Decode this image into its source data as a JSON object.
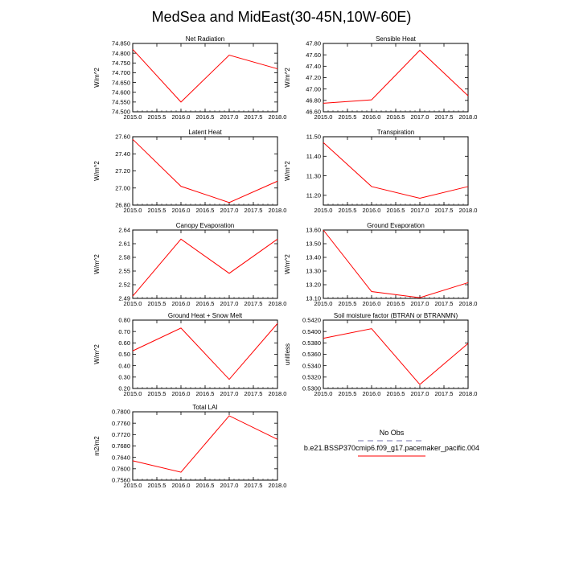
{
  "title": "MedSea and MidEast(30-45N,10W-60E)",
  "chart_data": [
    {
      "type": "line",
      "title": "Net Radiation",
      "ylabel": "W/m^2",
      "x": [
        2015,
        2016,
        2017,
        2018
      ],
      "values": [
        74.82,
        74.55,
        74.79,
        74.72
      ],
      "xlim": [
        2015,
        2018
      ],
      "ylim": [
        74.5,
        74.85
      ],
      "xticks": [
        "2015.0",
        "2015.5",
        "2016.0",
        "2016.5",
        "2017.0",
        "2017.5",
        "2018.0"
      ],
      "yticks": [
        "74.500",
        "74.550",
        "74.600",
        "74.650",
        "74.700",
        "74.750",
        "74.800",
        "74.850"
      ]
    },
    {
      "type": "line",
      "title": "Sensible Heat",
      "ylabel": "W/m^2",
      "x": [
        2015,
        2016,
        2017,
        2018
      ],
      "values": [
        46.75,
        46.81,
        47.68,
        46.88
      ],
      "xlim": [
        2015,
        2018
      ],
      "ylim": [
        46.6,
        47.8
      ],
      "xticks": [
        "2015.0",
        "2015.5",
        "2016.0",
        "2016.5",
        "2017.0",
        "2017.5",
        "2018.0"
      ],
      "yticks": [
        "46.60",
        "46.80",
        "47.00",
        "47.20",
        "47.40",
        "47.60",
        "47.80"
      ]
    },
    {
      "type": "line",
      "title": "Latent Heat",
      "ylabel": "W/m^2",
      "x": [
        2015,
        2016,
        2017,
        2018
      ],
      "values": [
        27.57,
        27.02,
        26.83,
        27.08
      ],
      "xlim": [
        2015,
        2018
      ],
      "ylim": [
        26.8,
        27.6
      ],
      "xticks": [
        "2015.0",
        "2015.5",
        "2016.0",
        "2016.5",
        "2017.0",
        "2017.5",
        "2018.0"
      ],
      "yticks": [
        "26.80",
        "27.00",
        "27.20",
        "27.40",
        "27.60"
      ]
    },
    {
      "type": "line",
      "title": "Transpiration",
      "ylabel": "W/m^2",
      "x": [
        2015,
        2016,
        2017,
        2018
      ],
      "values": [
        11.47,
        11.245,
        11.185,
        11.245
      ],
      "xlim": [
        2015,
        2018
      ],
      "ylim": [
        11.15,
        11.5
      ],
      "xticks": [
        "2015.0",
        "2015.5",
        "2016.0",
        "2016.5",
        "2017.0",
        "2017.5",
        "2018.0"
      ],
      "yticks": [
        "11.20",
        "11.30",
        "11.40",
        "11.50"
      ]
    },
    {
      "type": "line",
      "title": "Canopy Evaporation",
      "ylabel": "W/m^2",
      "x": [
        2015,
        2016,
        2017,
        2018
      ],
      "values": [
        2.495,
        2.62,
        2.545,
        2.62
      ],
      "xlim": [
        2015,
        2018
      ],
      "ylim": [
        2.49,
        2.64
      ],
      "xticks": [
        "2015.0",
        "2015.5",
        "2016.0",
        "2016.5",
        "2017.0",
        "2017.5",
        "2018.0"
      ],
      "yticks": [
        "2.49",
        "2.52",
        "2.55",
        "2.58",
        "2.61",
        "2.64"
      ]
    },
    {
      "type": "line",
      "title": "Ground Evaporation",
      "ylabel": "W/m^2",
      "x": [
        2015,
        2016,
        2017,
        2018
      ],
      "values": [
        13.6,
        13.15,
        13.105,
        13.215
      ],
      "xlim": [
        2015,
        2018
      ],
      "ylim": [
        13.1,
        13.6
      ],
      "xticks": [
        "2015.0",
        "2015.5",
        "2016.0",
        "2016.5",
        "2017.0",
        "2017.5",
        "2018.0"
      ],
      "yticks": [
        "13.10",
        "13.20",
        "13.30",
        "13.40",
        "13.50",
        "13.60"
      ]
    },
    {
      "type": "line",
      "title": "Ground Heat + Snow Melt",
      "ylabel": "W/m^2",
      "x": [
        2015,
        2016,
        2017,
        2018
      ],
      "values": [
        0.53,
        0.73,
        0.28,
        0.77
      ],
      "xlim": [
        2015,
        2018
      ],
      "ylim": [
        0.2,
        0.8
      ],
      "xticks": [
        "2015.0",
        "2015.5",
        "2016.0",
        "2016.5",
        "2017.0",
        "2017.5",
        "2018.0"
      ],
      "yticks": [
        "0.20",
        "0.30",
        "0.40",
        "0.50",
        "0.60",
        "0.70",
        "0.80"
      ]
    },
    {
      "type": "line",
      "title": "Soil moisture factor (BTRAN or BTRANMN)",
      "ylabel": "unitless",
      "x": [
        2015,
        2016,
        2017,
        2018
      ],
      "values": [
        0.5388,
        0.5405,
        0.5307,
        0.5379
      ],
      "xlim": [
        2015,
        2018
      ],
      "ylim": [
        0.53,
        0.542
      ],
      "xticks": [
        "2015.0",
        "2015.5",
        "2016.0",
        "2016.5",
        "2017.0",
        "2017.5",
        "2018.0"
      ],
      "yticks": [
        "0.5300",
        "0.5320",
        "0.5340",
        "0.5360",
        "0.5380",
        "0.5400",
        "0.5420"
      ]
    },
    {
      "type": "line",
      "title": "Total LAI",
      "ylabel": "m2/m2",
      "x": [
        2015,
        2016,
        2017,
        2018
      ],
      "values": [
        0.7628,
        0.7588,
        0.7786,
        0.7703
      ],
      "xlim": [
        2015,
        2018
      ],
      "ylim": [
        0.756,
        0.78
      ],
      "xticks": [
        "2015.0",
        "2015.5",
        "2016.0",
        "2016.5",
        "2017.0",
        "2017.5",
        "2018.0"
      ],
      "yticks": [
        "0.7560",
        "0.7600",
        "0.7640",
        "0.7680",
        "0.7720",
        "0.7760",
        "0.7800"
      ]
    }
  ],
  "legend": {
    "entries": [
      {
        "label": "No Obs",
        "color": "#a0a0c8",
        "style": "dashed"
      },
      {
        "label": "b.e21.BSSP370cmip6.f09_g17.pacemaker_pacific.004",
        "color": "#ff0000",
        "style": "solid"
      }
    ]
  },
  "colors": {
    "series": "#ff0000",
    "axis": "#000000"
  }
}
